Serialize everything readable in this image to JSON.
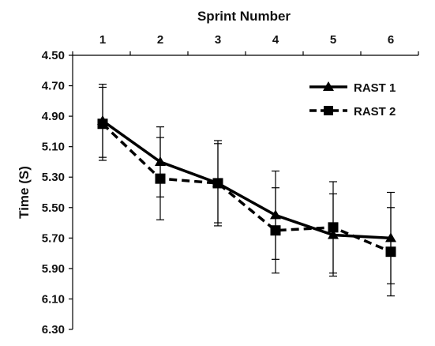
{
  "chart_data": {
    "type": "line",
    "x_axis_title": "Sprint Number",
    "y_axis_title": "Time (S)",
    "x_tick_labels": [
      "1",
      "2",
      "3",
      "4",
      "5",
      "6"
    ],
    "y_tick_labels": [
      "4.50",
      "4.70",
      "4.90",
      "5.10",
      "5.30",
      "5.50",
      "5.70",
      "5.90",
      "6.10",
      "6.30"
    ],
    "x": [
      1,
      2,
      3,
      4,
      5,
      6
    ],
    "ylim": [
      4.5,
      6.3
    ],
    "y_inverted": true,
    "x_axis_position": "top",
    "grid": false,
    "legend_position": "top-right",
    "series": [
      {
        "name": "RAST 1",
        "marker": "triangle",
        "line_style": "solid",
        "color": "#000000",
        "values": [
          4.93,
          5.2,
          5.34,
          5.55,
          5.68,
          5.7
        ],
        "error": [
          0.24,
          0.23,
          0.26,
          0.29,
          0.27,
          0.3
        ]
      },
      {
        "name": "RAST 2",
        "marker": "square",
        "line_style": "dashed",
        "color": "#000000",
        "values": [
          4.95,
          5.31,
          5.34,
          5.65,
          5.63,
          5.79
        ],
        "error": [
          0.24,
          0.27,
          0.28,
          0.28,
          0.3,
          0.29
        ]
      }
    ]
  }
}
